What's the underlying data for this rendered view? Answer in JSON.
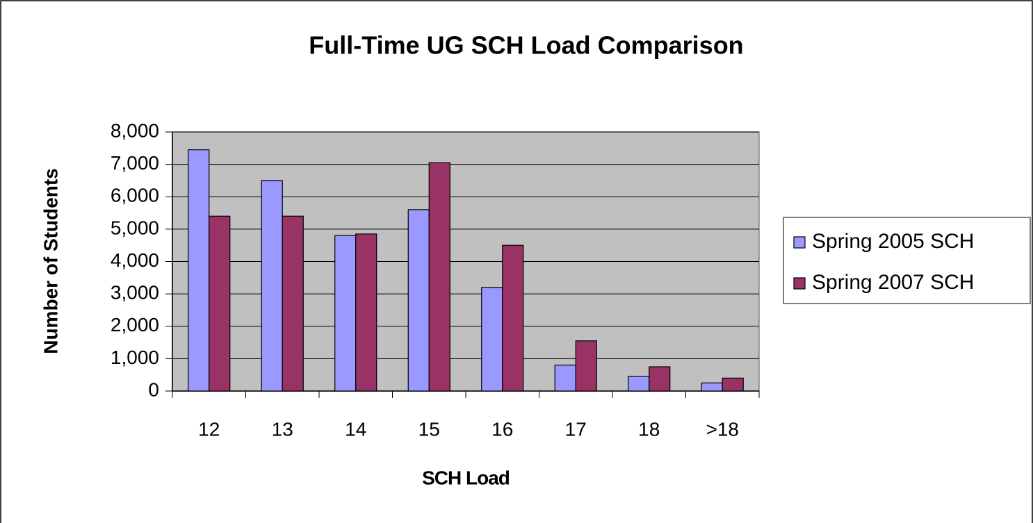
{
  "chart_data": {
    "type": "bar",
    "title": "Full-Time UG SCH Load Comparison",
    "x_label": "SCH Load",
    "y_label": "Number of Students",
    "categories": [
      "12",
      "13",
      "14",
      "15",
      "16",
      "17",
      "18",
      ">18"
    ],
    "series": [
      {
        "name": "Spring 2005 SCH",
        "color": "#9999ff",
        "values": [
          7450,
          6500,
          4800,
          5600,
          3200,
          800,
          450,
          250
        ]
      },
      {
        "name": "Spring 2007 SCH",
        "color": "#993366",
        "values": [
          5400,
          5400,
          4850,
          7050,
          4500,
          1550,
          750,
          400
        ]
      }
    ],
    "ylim": [
      0,
      8000
    ],
    "yticks": [
      0,
      {
        "value": 1000,
        "label": "1,000"
      },
      {
        "value": 2000,
        "label": "2,000"
      },
      {
        "value": 3000,
        "label": "3,000"
      },
      {
        "value": 4000,
        "label": "4,000"
      },
      {
        "value": 5000,
        "label": "5,000"
      },
      {
        "value": 6000,
        "label": "6,000"
      },
      {
        "value": 7000,
        "label": "7,000"
      },
      {
        "value": 8000,
        "label": "8,000"
      }
    ],
    "grid": true,
    "legend": "right",
    "plot_background": "#c0c0c0"
  }
}
